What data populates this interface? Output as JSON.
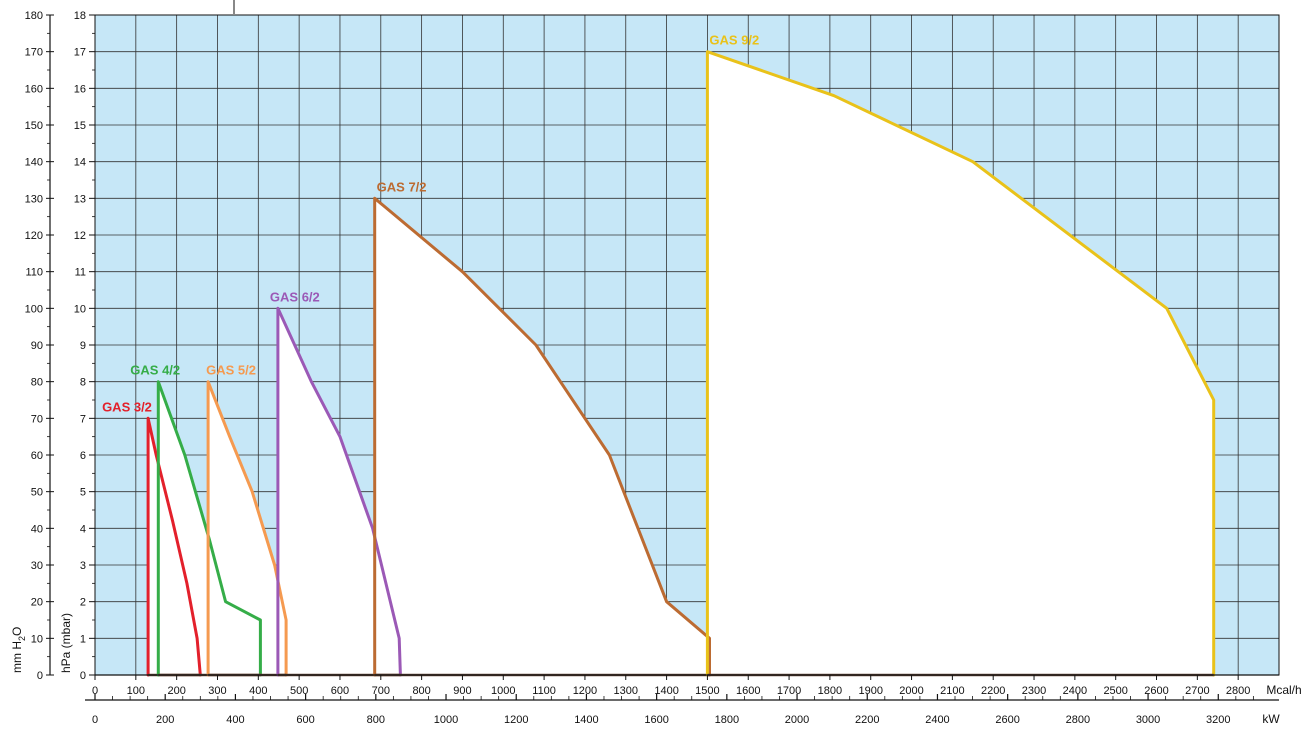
{
  "chart_data": {
    "type": "area",
    "x_axes": {
      "mcal": {
        "unit": "Mcal/h",
        "range": [
          0,
          2900
        ],
        "ticks": [
          0,
          100,
          200,
          300,
          400,
          500,
          600,
          700,
          800,
          900,
          1000,
          1100,
          1200,
          1300,
          1400,
          1500,
          1600,
          1700,
          1800,
          1900,
          2000,
          2100,
          2200,
          2300,
          2400,
          2500,
          2600,
          2700,
          2800
        ]
      },
      "kw": {
        "unit": "kW",
        "range": [
          0,
          3373
        ],
        "ticks": [
          0,
          200,
          400,
          600,
          800,
          1000,
          1200,
          1400,
          1600,
          1800,
          2000,
          2200,
          2400,
          2600,
          2800,
          3000,
          3200
        ]
      }
    },
    "y_axes": {
      "hpa": {
        "label": "hPa (mbar)",
        "range": [
          0,
          18
        ],
        "ticks": [
          0,
          1,
          2,
          3,
          4,
          5,
          6,
          7,
          8,
          9,
          10,
          11,
          12,
          13,
          14,
          15,
          16,
          17,
          18
        ]
      },
      "mmh2o": {
        "label": "mm H2O",
        "range": [
          0,
          180
        ],
        "ticks": [
          0,
          10,
          20,
          30,
          40,
          50,
          60,
          70,
          80,
          90,
          100,
          110,
          120,
          130,
          140,
          150,
          160,
          170,
          180
        ]
      }
    },
    "grid": true,
    "background_color": "#c6e7f7",
    "series": [
      {
        "name": "GAS 3/2",
        "color": "#e3202b",
        "points": [
          [
            130,
            0
          ],
          [
            130,
            7.0
          ],
          [
            150,
            6.0
          ],
          [
            190,
            4.2
          ],
          [
            225,
            2.5
          ],
          [
            250,
            1.0
          ],
          [
            258,
            0
          ]
        ]
      },
      {
        "name": "GAS 4/2",
        "color": "#35ad48",
        "points": [
          [
            155,
            0
          ],
          [
            155,
            8.0
          ],
          [
            220,
            6.0
          ],
          [
            280,
            3.7
          ],
          [
            320,
            2.0
          ],
          [
            405,
            1.5
          ],
          [
            405,
            0
          ]
        ]
      },
      {
        "name": "GAS 5/2",
        "color": "#f59a50",
        "points": [
          [
            277,
            0
          ],
          [
            277,
            8.0
          ],
          [
            330,
            6.5
          ],
          [
            385,
            5.0
          ],
          [
            440,
            3.0
          ],
          [
            468,
            1.5
          ],
          [
            468,
            0
          ]
        ]
      },
      {
        "name": "GAS 6/2",
        "color": "#9b59b6",
        "points": [
          [
            448,
            0
          ],
          [
            448,
            10.0
          ],
          [
            530,
            8.0
          ],
          [
            600,
            6.5
          ],
          [
            680,
            4.0
          ],
          [
            745,
            1.0
          ],
          [
            748,
            0
          ]
        ]
      },
      {
        "name": "GAS 7/2",
        "color": "#bc6b32",
        "points": [
          [
            685,
            0
          ],
          [
            685,
            13.0
          ],
          [
            900,
            11.0
          ],
          [
            1080,
            9.0
          ],
          [
            1260,
            6.0
          ],
          [
            1400,
            2.0
          ],
          [
            1505,
            1.0
          ],
          [
            1505,
            0
          ]
        ]
      },
      {
        "name": "GAS 9/2",
        "color": "#e9c21a",
        "points": [
          [
            1500,
            0
          ],
          [
            1500,
            17.0
          ],
          [
            1810,
            15.8
          ],
          [
            2150,
            14.0
          ],
          [
            2625,
            10.0
          ],
          [
            2740,
            7.5
          ],
          [
            2740,
            0
          ]
        ]
      }
    ]
  }
}
